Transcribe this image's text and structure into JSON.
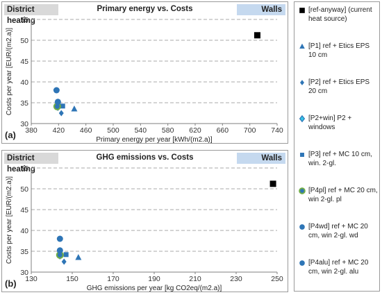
{
  "colors": {
    "ref_anyway": "#000000",
    "P1": "#2e75b6",
    "P2": "#2e75b6",
    "P2win_fill": "#34c4e6",
    "P2win_edge": "#2e75b6",
    "P3": "#2e75b6",
    "P4pl_fill": "#2e75b6",
    "P4pl_edge": "#70ad47",
    "P4wd": "#2e75b6",
    "P4alu": "#2e75b6"
  },
  "legend": [
    {
      "key": "ref",
      "symbol": "square",
      "label": "[ref-anyway] (current heat source)"
    },
    {
      "key": "P1",
      "symbol": "triangle",
      "label": "[P1] ref + Etics EPS 10 cm"
    },
    {
      "key": "P2",
      "symbol": "diamond",
      "label": "[P2] ref + Etics EPS 20 cm"
    },
    {
      "key": "P2win",
      "symbol": "diamond-light",
      "label": "[P2+win] P2 + windows"
    },
    {
      "key": "P3",
      "symbol": "square-small",
      "label": "[P3] ref + MC 10 cm, win. 2-gl."
    },
    {
      "key": "P4pl",
      "symbol": "circle-green",
      "label": "[P4pl] ref + MC 20 cm, win 2-gl. pl"
    },
    {
      "key": "P4wd",
      "symbol": "circle",
      "label": "[P4wd] ref + MC 20 cm, win 2-gl. wd"
    },
    {
      "key": "P4alu",
      "symbol": "circle",
      "label": "[P4alu] ref + MC 20 cm, win 2-gl. alu"
    }
  ],
  "chart_data": [
    {
      "type": "scatter",
      "panel_label": "(a)",
      "header_left": "District heating",
      "title": "Primary energy vs. Costs",
      "header_right": "Walls",
      "xlabel": "Primary energy per year  [kWh/(m2.a)]",
      "ylabel": "Costs per year  [EUR/(m2.a)]",
      "xlim": [
        380,
        740
      ],
      "ylim": [
        30,
        55
      ],
      "xticks": [
        "380",
        "420",
        "460",
        "500",
        "540",
        "580",
        "620",
        "660",
        "700",
        "740"
      ],
      "yticks": [
        "30",
        "35",
        "40",
        "45",
        "50",
        "55"
      ],
      "grid": true,
      "series": [
        {
          "key": "ref",
          "name": "[ref-anyway]",
          "points": [
            [
              711,
              51.2
            ]
          ]
        },
        {
          "key": "P1",
          "name": "[P1]",
          "points": [
            [
              443,
              33.5
            ]
          ]
        },
        {
          "key": "P2",
          "name": "[P2]",
          "points": [
            [
              424,
              32.5
            ]
          ]
        },
        {
          "key": "P2win",
          "name": "[P2+win]",
          "points": [
            [
              419,
              34.0
            ]
          ]
        },
        {
          "key": "P3",
          "name": "[P3]",
          "points": [
            [
              426,
              34.2
            ]
          ]
        },
        {
          "key": "P4pl",
          "name": "[P4pl]",
          "points": [
            [
              418,
              34.1
            ]
          ]
        },
        {
          "key": "P4wd",
          "name": "[P4wd]",
          "points": [
            [
              419,
              35.2
            ]
          ]
        },
        {
          "key": "P4alu",
          "name": "[P4alu]",
          "points": [
            [
              417,
              38.0
            ]
          ]
        }
      ]
    },
    {
      "type": "scatter",
      "panel_label": "(b)",
      "header_left": "District heating",
      "title": "GHG emissions vs. Costs",
      "header_right": "Walls",
      "xlabel": "GHG emissions per year  [kg CO2eq/(m2.a)]",
      "ylabel": "Costs per year  [EUR/(m2.a)]",
      "xlim": [
        130,
        250
      ],
      "ylim": [
        30,
        55
      ],
      "xticks": [
        "130",
        "150",
        "170",
        "190",
        "210",
        "230",
        "250"
      ],
      "yticks": [
        "30",
        "35",
        "40",
        "45",
        "50",
        "55"
      ],
      "grid": true,
      "series": [
        {
          "key": "ref",
          "name": "[ref-anyway]",
          "points": [
            [
              248,
              51.2
            ]
          ]
        },
        {
          "key": "P1",
          "name": "[P1]",
          "points": [
            [
              153,
              33.5
            ]
          ]
        },
        {
          "key": "P2",
          "name": "[P2]",
          "points": [
            [
              146,
              32.5
            ]
          ]
        },
        {
          "key": "P2win",
          "name": "[P2+win]",
          "points": [
            [
              144,
              34.0
            ]
          ]
        },
        {
          "key": "P3",
          "name": "[P3]",
          "points": [
            [
              147,
              34.2
            ]
          ]
        },
        {
          "key": "P4pl",
          "name": "[P4pl]",
          "points": [
            [
              144,
              34.1
            ]
          ]
        },
        {
          "key": "P4wd",
          "name": "[P4wd]",
          "points": [
            [
              144,
              35.2
            ]
          ]
        },
        {
          "key": "P4alu",
          "name": "[P4alu]",
          "points": [
            [
              144,
              38.0
            ]
          ]
        }
      ]
    }
  ]
}
